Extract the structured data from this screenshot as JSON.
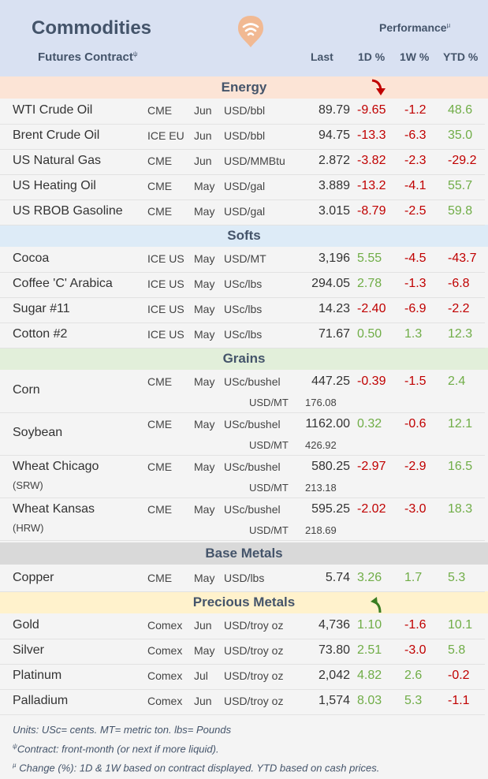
{
  "header": {
    "title": "Commodities",
    "subtitle": "Futures Contract",
    "subtitle_sup": "ψ",
    "performance": "Performance",
    "performance_sup": "µ",
    "col_last": "Last",
    "col_1d": "1D %",
    "col_1w": "1W %",
    "col_ytd": "YTD %"
  },
  "sections": {
    "energy": "Energy",
    "softs": "Softs",
    "grains": "Grains",
    "base_metals": "Base Metals",
    "precious_metals": "Precious Metals"
  },
  "rows": [
    {
      "name": "WTI Crude Oil",
      "exchange": "CME",
      "month": "Jun",
      "unit": "USD/bbl",
      "last": "89.79",
      "d1": "-9.65",
      "w1": "-1.2",
      "ytd": "48.6"
    },
    {
      "name": "Brent Crude Oil",
      "exchange": "ICE EU",
      "month": "Jun",
      "unit": "USD/bbl",
      "last": "94.75",
      "d1": "-13.3",
      "w1": "-6.3",
      "ytd": "35.0"
    },
    {
      "name": "US Natural Gas",
      "exchange": "CME",
      "month": "Jun",
      "unit": "USD/MMBtu",
      "last": "2.872",
      "d1": "-3.82",
      "w1": "-2.3",
      "ytd": "-29.2"
    },
    {
      "name": "US Heating Oil",
      "exchange": "CME",
      "month": "May",
      "unit": "USD/gal",
      "last": "3.889",
      "d1": "-13.2",
      "w1": "-4.1",
      "ytd": "55.7"
    },
    {
      "name": "US RBOB Gasoline",
      "exchange": "CME",
      "month": "May",
      "unit": "USD/gal",
      "last": "3.015",
      "d1": "-8.79",
      "w1": "-2.5",
      "ytd": "59.8"
    },
    {
      "name": "Cocoa",
      "exchange": "ICE US",
      "month": "May",
      "unit": "USD/MT",
      "last": "3,196",
      "d1": "5.55",
      "w1": "-4.5",
      "ytd": "-43.7"
    },
    {
      "name": "Coffee 'C' Arabica",
      "exchange": "ICE US",
      "month": "May",
      "unit": "USc/lbs",
      "last": "294.05",
      "d1": "2.78",
      "w1": "-1.3",
      "ytd": "-6.8"
    },
    {
      "name": "Sugar #11",
      "exchange": "ICE US",
      "month": "May",
      "unit": "USc/lbs",
      "last": "14.23",
      "d1": "-2.40",
      "w1": "-6.9",
      "ytd": "-2.2"
    },
    {
      "name": "Cotton #2",
      "exchange": "ICE US",
      "month": "May",
      "unit": "USc/lbs",
      "last": "71.67",
      "d1": "0.50",
      "w1": "1.3",
      "ytd": "12.3"
    },
    {
      "name": "Corn",
      "name2": "",
      "exchange": "CME",
      "month": "May",
      "unit": "USc/bushel",
      "last": "447.25",
      "unit2": "USD/MT",
      "last2": "176.08",
      "d1": "-0.39",
      "w1": "-1.5",
      "ytd": "2.4"
    },
    {
      "name": "Soybean",
      "name2": "",
      "exchange": "CME",
      "month": "May",
      "unit": "USc/bushel",
      "last": "1162.00",
      "unit2": "USD/MT",
      "last2": "426.92",
      "d1": "0.32",
      "w1": "-0.6",
      "ytd": "12.1"
    },
    {
      "name": "Wheat Chicago",
      "name2": "(SRW)",
      "exchange": "CME",
      "month": "May",
      "unit": "USc/bushel",
      "last": "580.25",
      "unit2": "USD/MT",
      "last2": "213.18",
      "d1": "-2.97",
      "w1": "-2.9",
      "ytd": "16.5"
    },
    {
      "name": "Wheat Kansas",
      "name2": "(HRW)",
      "exchange": "CME",
      "month": "May",
      "unit": "USc/bushel",
      "last": "595.25",
      "unit2": "USD/MT",
      "last2": "218.69",
      "d1": "-2.02",
      "w1": "-3.0",
      "ytd": "18.3"
    },
    {
      "name": "Copper",
      "exchange": "CME",
      "month": "May",
      "unit": "USD/lbs",
      "last": "5.74",
      "d1": "3.26",
      "w1": "1.7",
      "ytd": "5.3"
    },
    {
      "name": "Gold",
      "exchange": "Comex",
      "month": "Jun",
      "unit": "USD/troy oz",
      "last": "4,736",
      "d1": "1.10",
      "w1": "-1.6",
      "ytd": "10.1"
    },
    {
      "name": "Silver",
      "exchange": "Comex",
      "month": "May",
      "unit": "USD/troy oz",
      "last": "73.80",
      "d1": "2.51",
      "w1": "-3.0",
      "ytd": "5.8"
    },
    {
      "name": "Platinum",
      "exchange": "Comex",
      "month": "Jul",
      "unit": "USD/troy oz",
      "last": "2,042",
      "d1": "4.82",
      "w1": "2.6",
      "ytd": "-0.2"
    },
    {
      "name": "Palladium",
      "exchange": "Comex",
      "month": "Jun",
      "unit": "USD/troy oz",
      "last": "1,574",
      "d1": "8.03",
      "w1": "5.3",
      "ytd": "-1.1"
    }
  ],
  "footer": {
    "units": "Units: USc= cents.  MT= metric ton.  lbs= Pounds",
    "contract_sup": "ψ",
    "contract": "Contract: front-month (or next if more liquid).",
    "change_sup": "µ",
    "change": "Change (%): 1D & 1W based on contract displayed. YTD based on cash prices."
  },
  "colors": {
    "header_bg": "#d9e1f2",
    "energy_bg": "#fce4d6",
    "softs_bg": "#ddebf7",
    "grains_bg": "#e2efda",
    "base_metals_bg": "#d9d9d9",
    "precious_metals_bg": "#fff2cc",
    "positive": "#70ad47",
    "negative": "#c00000"
  },
  "icons": {
    "logo": "wifi-signal-logo",
    "energy_marker": "down-arrow-icon",
    "precious_marker": "up-arrow-icon"
  }
}
